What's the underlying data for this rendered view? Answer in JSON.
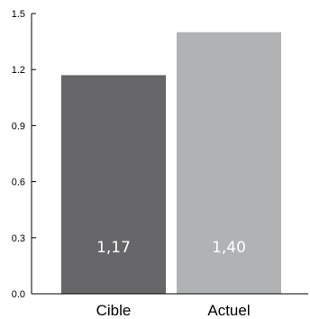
{
  "chart_data": {
    "type": "bar",
    "title": "",
    "xlabel": "",
    "ylabel": "",
    "ylim": [
      0,
      1.5
    ],
    "yticks": [
      0,
      0.3,
      0.6,
      0.9,
      1.2,
      1.5
    ],
    "ytick_labels": [
      "0.0",
      "0.3",
      "0.6",
      "0.9",
      "1.2",
      "1.5"
    ],
    "grid": false,
    "legend": "none",
    "categories": [
      "Cible",
      "Actuel"
    ],
    "values": [
      1.17,
      1.4
    ],
    "value_labels": [
      "1,17",
      "1,40"
    ],
    "colors": [
      "#666668",
      "#b0b2b4"
    ],
    "axis_color": "#000000",
    "label_color": "#ffffff"
  }
}
